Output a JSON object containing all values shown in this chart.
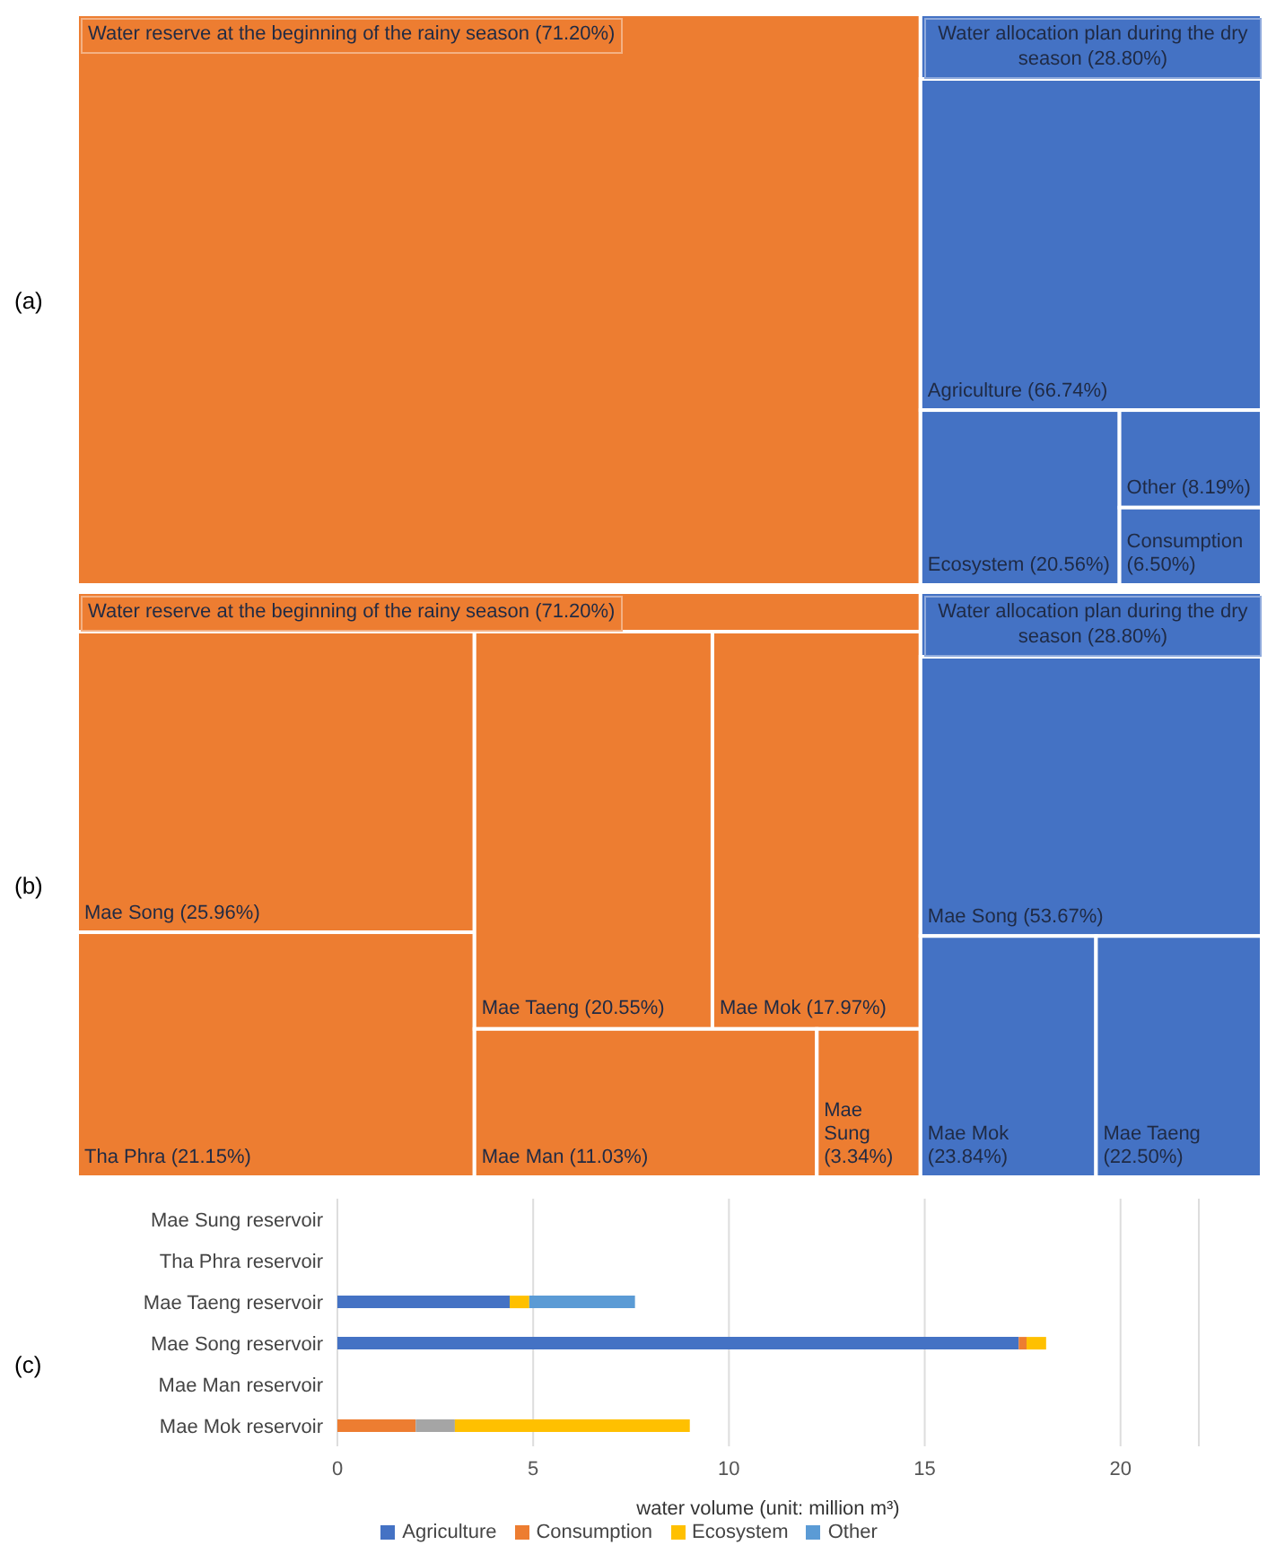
{
  "chart_data": [
    {
      "type": "other",
      "annotations": [
        "(a)"
      ],
      "categories": [
        "Water reserve at the beginning of the rainy season",
        "Water allocation plan during the dry season",
        "Agriculture",
        "Ecosystem",
        "Other",
        "Consumption"
      ],
      "values": [
        71.2,
        28.8,
        66.74,
        20.56,
        8.19,
        6.5
      ],
      "value_labels": [
        "(71.20%)",
        "(28.80%)",
        "(66.74%)",
        "(20.56%)",
        "(8.19%)",
        "(6.50%)"
      ],
      "colors": [
        "#ed7d31",
        "#4472c4",
        "#4472c4",
        "#4472c4",
        "#4472c4",
        "#4472c4"
      ]
    },
    {
      "type": "other",
      "annotations": [
        "(b)"
      ],
      "categories": [
        "Water reserve at the beginning of the rainy season",
        "Water allocation plan during the dry season",
        "Mae Song",
        "Tha Phra",
        "Mae Taeng",
        "Mae Mok",
        "Mae Man",
        "Mae Sung",
        "Mae Song",
        "Mae Mok",
        "Mae Taeng"
      ],
      "values": [
        71.2,
        28.8,
        25.96,
        21.15,
        20.55,
        17.97,
        11.03,
        3.34,
        53.67,
        23.84,
        22.5
      ],
      "value_labels": [
        "(71.20%)",
        "(28.80%)",
        "(25.96%)",
        "(21.15%)",
        "(20.55%)",
        "(17.97%)",
        "(11.03%)",
        "(3.34%)",
        "(53.67%)",
        "(23.84%)",
        "(22.50%)"
      ],
      "colors": [
        "#ed7d31",
        "#4472c4",
        "#ed7d31",
        "#ed7d31",
        "#ed7d31",
        "#ed7d31",
        "#ed7d31",
        "#ed7d31",
        "#4472c4",
        "#4472c4",
        "#4472c4"
      ]
    },
    {
      "type": "bar",
      "orientation": "horizontal",
      "stacked": true,
      "annotations": [
        "(c)"
      ],
      "xlabel": "water volume (unit: million m³)",
      "categories": [
        "Mae Sung reservoir",
        "Tha Phra reservoir",
        "Mae Taeng reservoir",
        "Mae Song reservoir",
        "Mae Man reservoir",
        "Mae Mok reservoir"
      ],
      "xlim": [
        0,
        22
      ],
      "xticks": [
        0,
        5,
        10,
        15,
        20
      ],
      "grid": "x",
      "legend": "bottom",
      "series": [
        {
          "name": "Agriculture",
          "color": "#4472c4",
          "values": [
            null,
            null,
            4.4,
            17.4,
            null,
            null
          ]
        },
        {
          "name": "Consumption",
          "color": "#ed7d31",
          "values": [
            null,
            null,
            null,
            0.2,
            null,
            2.0
          ]
        },
        {
          "color": "#a5a5a5",
          "values": [
            null,
            null,
            null,
            null,
            null,
            1.0
          ]
        },
        {
          "name": "Ecosystem",
          "color": "#ffc000",
          "values": [
            null,
            null,
            0.5,
            0.5,
            null,
            6.0
          ]
        },
        {
          "name": "Other",
          "color": "#5b9bd5",
          "values": [
            null,
            null,
            2.7,
            null,
            null,
            null
          ]
        }
      ]
    }
  ]
}
